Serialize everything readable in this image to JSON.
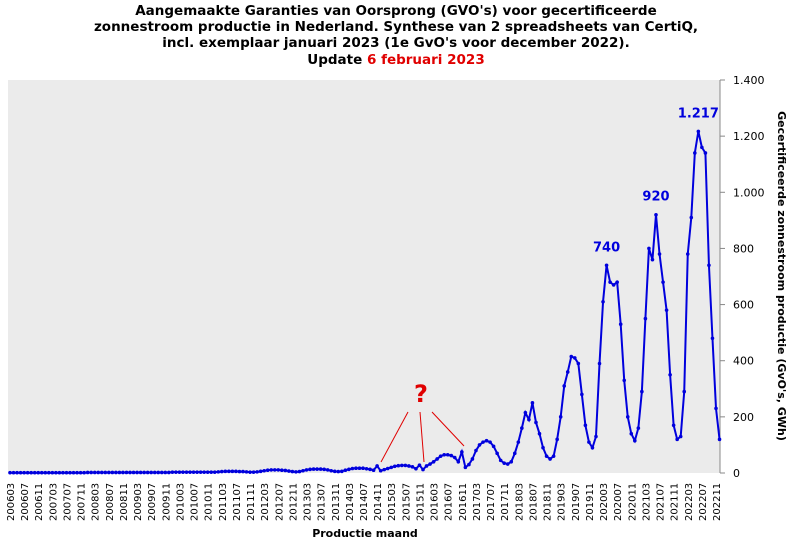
{
  "chart_data": {
    "type": "line",
    "title_lines": [
      "Aangemaakte Garanties van Oorsprong (GVO's) voor gecertificeerde",
      "zonnestroom productie in Nederland. Synthese van 2 spreadsheets van CertiQ,",
      "incl. exemplaar januari 2023 (1e GvO's voor december 2022)."
    ],
    "update_prefix": "Update",
    "update_date": "6 februari 2023",
    "xlabel": "Productie maand",
    "ylabel": "Gecertificeerde zonnestroom productie (GvO's, GWh)",
    "categories": [
      "200603",
      null,
      null,
      null,
      "200607",
      null,
      null,
      null,
      "200611",
      null,
      null,
      null,
      "200703",
      null,
      null,
      null,
      "200707",
      null,
      null,
      null,
      "200711",
      null,
      null,
      null,
      "200803",
      null,
      null,
      null,
      "200807",
      null,
      null,
      null,
      "200811",
      null,
      null,
      null,
      "200903",
      null,
      null,
      null,
      "200907",
      null,
      null,
      null,
      "200911",
      null,
      null,
      null,
      "201003",
      null,
      null,
      null,
      "201007",
      null,
      null,
      null,
      "201011",
      null,
      null,
      null,
      "201103",
      null,
      null,
      null,
      "201107",
      null,
      null,
      null,
      "201111",
      null,
      null,
      null,
      "201203",
      null,
      null,
      null,
      "201207",
      null,
      null,
      null,
      "201211",
      null,
      null,
      null,
      "201303",
      null,
      null,
      null,
      "201307",
      null,
      null,
      null,
      "201311",
      null,
      null,
      null,
      "201403",
      null,
      null,
      null,
      "201407",
      null,
      null,
      null,
      "201411",
      null,
      null,
      null,
      "201503",
      null,
      null,
      null,
      "201507",
      null,
      null,
      null,
      "201511",
      null,
      null,
      null,
      "201603",
      null,
      null,
      null,
      "201607",
      null,
      null,
      null,
      "201611",
      null,
      null,
      null,
      "201703",
      null,
      null,
      null,
      "201707",
      null,
      null,
      null,
      "201711",
      null,
      null,
      null,
      "201803",
      null,
      null,
      null,
      "201807",
      null,
      null,
      null,
      "201811",
      null,
      null,
      null,
      "201903",
      null,
      null,
      null,
      "201907",
      null,
      null,
      null,
      "201911",
      null,
      null,
      null,
      "202003",
      null,
      null,
      null,
      "202007",
      null,
      null,
      null,
      "202011",
      null,
      null,
      null,
      "202103",
      null,
      null,
      null,
      "202107",
      null,
      null,
      null,
      "202111",
      null,
      null,
      null,
      "202203",
      null,
      null,
      null,
      "202207",
      null,
      null,
      null,
      "202211",
      null
    ],
    "series": [
      {
        "name": "GvO's",
        "color": "#0000dd",
        "values": [
          1,
          1,
          1,
          1,
          1,
          1,
          1,
          1,
          1,
          1,
          1,
          1,
          1,
          1,
          1,
          1,
          1,
          1,
          1,
          1,
          1,
          1,
          2,
          2,
          2,
          2,
          2,
          2,
          2,
          2,
          2,
          2,
          2,
          2,
          2,
          2,
          2,
          2,
          2,
          2,
          2,
          2,
          2,
          2,
          2,
          2,
          3,
          3,
          3,
          3,
          3,
          3,
          3,
          3,
          3,
          3,
          3,
          3,
          3,
          4,
          5,
          6,
          6,
          6,
          6,
          5,
          5,
          4,
          3,
          3,
          4,
          6,
          8,
          10,
          11,
          11,
          11,
          10,
          9,
          7,
          5,
          4,
          5,
          8,
          11,
          13,
          14,
          14,
          14,
          13,
          11,
          8,
          6,
          5,
          6,
          10,
          13,
          16,
          17,
          17,
          17,
          15,
          13,
          10,
          25,
          8,
          12,
          16,
          20,
          24,
          26,
          27,
          27,
          25,
          22,
          15,
          28,
          12,
          25,
          32,
          40,
          50,
          60,
          65,
          65,
          62,
          55,
          40,
          75,
          20,
          30,
          50,
          80,
          100,
          110,
          115,
          110,
          95,
          70,
          45,
          35,
          32,
          40,
          70,
          110,
          160,
          215,
          190,
          250,
          180,
          140,
          90,
          60,
          50,
          60,
          120,
          200,
          310,
          360,
          415,
          410,
          390,
          280,
          170,
          110,
          90,
          130,
          390,
          610,
          740,
          680,
          670,
          680,
          530,
          330,
          200,
          140,
          115,
          160,
          290,
          550,
          800,
          760,
          920,
          780,
          680,
          580,
          350,
          170,
          120,
          130,
          290,
          780,
          910,
          1140,
          1217,
          1160,
          1140,
          740,
          480,
          230,
          120
        ]
      }
    ],
    "annotations": [
      {
        "text": "740",
        "value": 740
      },
      {
        "text": "920",
        "value": 920
      },
      {
        "text": "1.217",
        "value": 1217
      }
    ],
    "question_mark": "?",
    "ylim": [
      0,
      1400
    ],
    "yticks": [
      0,
      200,
      400,
      600,
      800,
      {
        "value": 1000,
        "label": "1.000"
      },
      {
        "value": 1200,
        "label": "1.200"
      },
      {
        "value": 1400,
        "label": "1.400"
      }
    ],
    "grid": false
  }
}
